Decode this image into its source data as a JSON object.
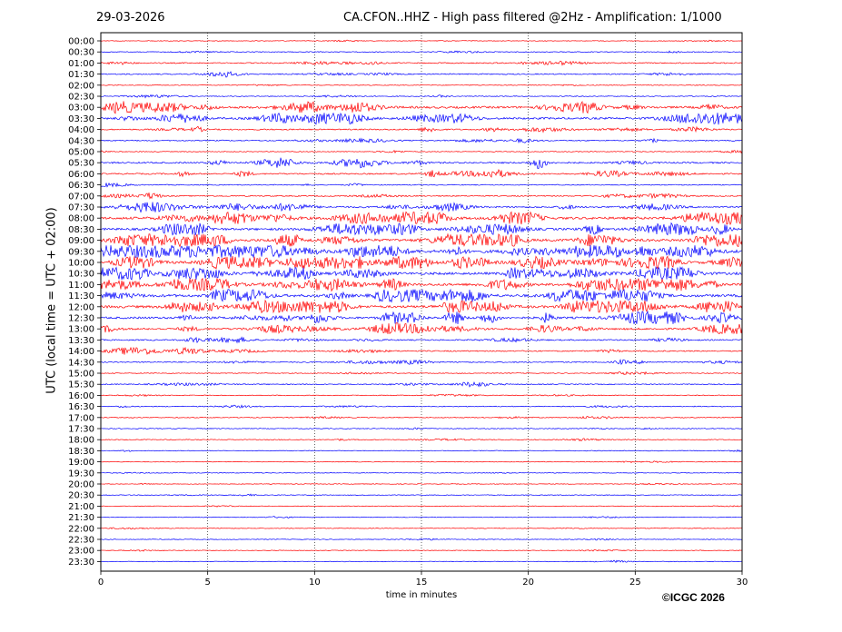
{
  "header": {
    "date": "29-03-2026",
    "title": "CA.CFON..HHZ - High pass filtered @2Hz - Amplification: 1/1000"
  },
  "footer": {
    "copyright": "©ICGC 2026"
  },
  "chart_data": {
    "type": "line",
    "title": "CA.CFON..HHZ - High pass filtered @2Hz - Amplification: 1/1000",
    "xlabel": "time in minutes",
    "ylabel": "UTC (local time = UTC + 02:00)",
    "xlim": [
      0,
      30
    ],
    "x_ticks": [
      0,
      5,
      10,
      15,
      20,
      25,
      30
    ],
    "grid": "vertical dotted lines at x ticks",
    "trace_colors": [
      "#ff0000",
      "#0000ff"
    ],
    "rows": [
      "00:00",
      "00:30",
      "01:00",
      "01:30",
      "02:00",
      "02:30",
      "03:00",
      "03:30",
      "04:00",
      "04:30",
      "05:00",
      "05:30",
      "06:00",
      "06:30",
      "07:00",
      "07:30",
      "08:00",
      "08:30",
      "09:00",
      "09:30",
      "10:00",
      "10:30",
      "11:00",
      "11:30",
      "12:00",
      "12:30",
      "13:00",
      "13:30",
      "14:00",
      "14:30",
      "15:00",
      "15:30",
      "16:00",
      "16:30",
      "17:00",
      "17:30",
      "18:00",
      "18:30",
      "19:00",
      "19:30",
      "20:00",
      "20:30",
      "21:00",
      "21:30",
      "22:00",
      "22:30",
      "23:00",
      "23:30"
    ],
    "activity": [
      0.3,
      0.5,
      1.0,
      1.0,
      0.4,
      0.6,
      2.4,
      2.2,
      1.2,
      1.0,
      0.5,
      1.6,
      1.3,
      0.7,
      1.0,
      1.7,
      2.9,
      2.6,
      3.2,
      3.6,
      2.9,
      3.0,
      2.9,
      3.3,
      3.0,
      2.4,
      2.0,
      1.2,
      1.1,
      1.0,
      0.5,
      0.8,
      0.5,
      0.6,
      0.6,
      0.5,
      0.5,
      0.4,
      0.3,
      0.3,
      0.3,
      0.4,
      0.3,
      0.3,
      0.3,
      0.3,
      0.3,
      0.3
    ]
  }
}
